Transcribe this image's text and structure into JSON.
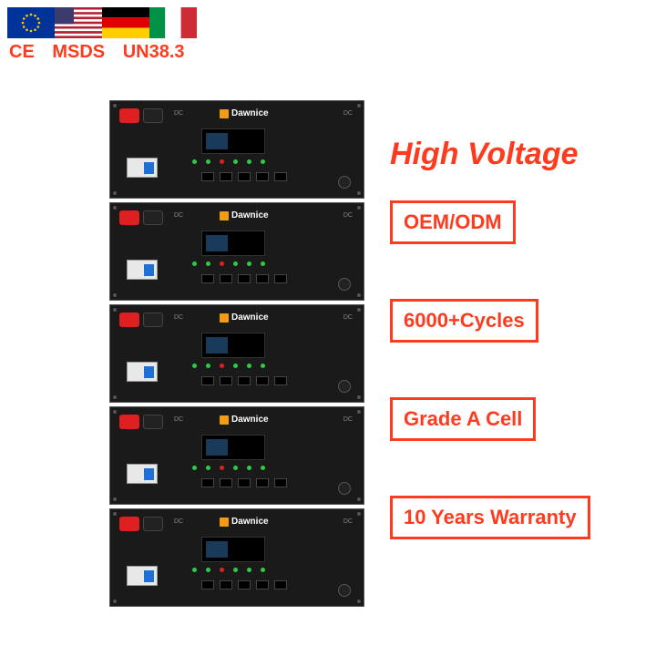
{
  "accent_color": "#ff3b1f",
  "certs": [
    "CE",
    "MSDS",
    "UN38.3"
  ],
  "flags": [
    "eu",
    "us",
    "de",
    "it"
  ],
  "module": {
    "brand": "Dawnice",
    "dc_label": "DC",
    "count": 5
  },
  "headline": "High Voltage",
  "badges": [
    {
      "text": "OEM/ODM"
    },
    {
      "text": "6000+Cycles"
    },
    {
      "text": "Grade A Cell"
    },
    {
      "text": "10 Years Warranty"
    }
  ],
  "colors": {
    "badge_border": "#ff3b1f",
    "badge_text": "#ff3b1f",
    "cert_text": "#ff3b1f",
    "headline_text": "#ff3b1f",
    "module_bg": "#1a1a1a"
  }
}
